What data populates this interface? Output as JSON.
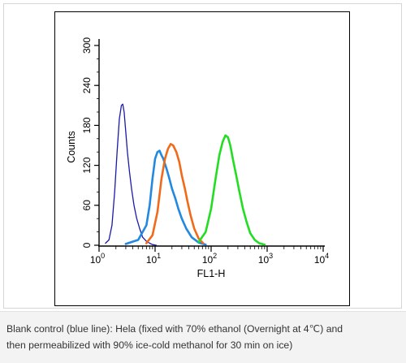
{
  "chart_data": {
    "type": "line",
    "xlabel": "FL1-H",
    "ylabel": "Counts",
    "x_scale": "log",
    "xlim": [
      1,
      10000
    ],
    "ylim": [
      0,
      300
    ],
    "x_ticks": [
      {
        "value": 1,
        "base": "10",
        "exp": "0"
      },
      {
        "value": 10,
        "base": "10",
        "exp": "1"
      },
      {
        "value": 100,
        "base": "10",
        "exp": "2"
      },
      {
        "value": 1000,
        "base": "10",
        "exp": "3"
      },
      {
        "value": 10000,
        "base": "10",
        "exp": "4"
      }
    ],
    "y_ticks": [
      "0",
      "60",
      "120",
      "180",
      "240",
      "300"
    ],
    "series": [
      {
        "color": "#1a1aaa",
        "x": [
          1.3,
          1.5,
          1.7,
          1.9,
          2.1,
          2.3,
          2.5,
          2.65,
          2.8,
          3.0,
          3.2,
          3.5,
          3.8,
          4.2,
          4.7,
          5.3,
          6.0,
          7.0,
          8.0,
          9.0,
          10.5
        ],
        "y": [
          3,
          8,
          30,
          80,
          140,
          190,
          210,
          212,
          200,
          170,
          140,
          110,
          85,
          60,
          40,
          25,
          12,
          6,
          3,
          1,
          0
        ]
      },
      {
        "color": "#2288e0",
        "x": [
          3,
          5,
          7,
          8,
          9,
          10,
          11,
          12,
          13,
          14,
          15,
          16,
          18,
          20,
          23,
          26,
          30,
          36,
          45,
          60,
          80
        ],
        "y": [
          2,
          8,
          30,
          60,
          100,
          130,
          140,
          142,
          135,
          130,
          122,
          115,
          100,
          85,
          70,
          55,
          40,
          25,
          12,
          4,
          1
        ]
      },
      {
        "color": "#f06a1a",
        "x": [
          7,
          9,
          11,
          13,
          15,
          17,
          19,
          21,
          24,
          27,
          30,
          34,
          38,
          43,
          50,
          60,
          72
        ],
        "y": [
          3,
          15,
          50,
          100,
          130,
          145,
          152,
          150,
          140,
          125,
          105,
          85,
          65,
          45,
          25,
          10,
          3
        ]
      },
      {
        "color": "#22dd22",
        "x": [
          60,
          80,
          100,
          120,
          140,
          160,
          180,
          200,
          220,
          250,
          280,
          320,
          370,
          430,
          500,
          600,
          720,
          900
        ],
        "y": [
          5,
          20,
          55,
          100,
          135,
          155,
          165,
          162,
          150,
          125,
          105,
          80,
          55,
          35,
          18,
          8,
          3,
          1
        ]
      }
    ]
  },
  "caption": {
    "line1": "Blank control (blue line): Hela (fixed with 70% ethanol (Overnight at 4℃) and",
    "line2": "then permeabilized with 90% ice-cold methanol for 30 min on ice)"
  }
}
